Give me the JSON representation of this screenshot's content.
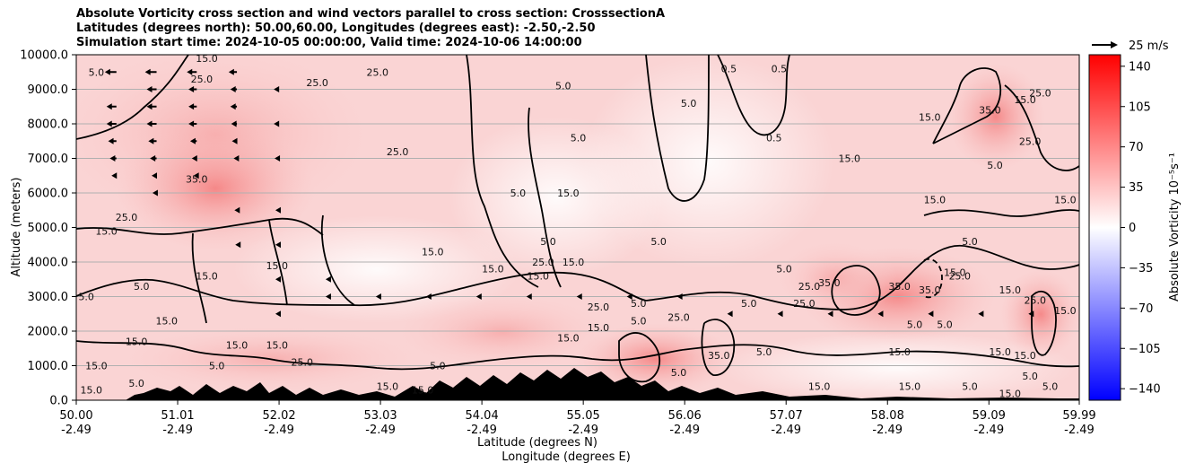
{
  "chart_data": {
    "type": "heatmap",
    "title_lines": [
      "Absolute Vorticity cross section and wind vectors parallel to cross section: CrosssectionA",
      "Latitudes (degrees north): 50.00,60.00, Longitudes (degrees east): -2.50,-2.50",
      "Simulation start time: 2024-10-05 00:00:00, Valid time: 2024-10-06 14:00:00"
    ],
    "x_ticks": [
      {
        "lat": "50.00",
        "lon": "-2.49",
        "value": 50.0
      },
      {
        "lat": "51.01",
        "lon": "-2.49",
        "value": 51.01
      },
      {
        "lat": "52.02",
        "lon": "-2.49",
        "value": 52.02
      },
      {
        "lat": "53.03",
        "lon": "-2.49",
        "value": 53.03
      },
      {
        "lat": "54.04",
        "lon": "-2.49",
        "value": 54.04
      },
      {
        "lat": "55.05",
        "lon": "-2.49",
        "value": 55.05
      },
      {
        "lat": "56.06",
        "lon": "-2.49",
        "value": 56.06
      },
      {
        "lat": "57.07",
        "lon": "-2.49",
        "value": 57.07
      },
      {
        "lat": "58.08",
        "lon": "-2.49",
        "value": 58.08
      },
      {
        "lat": "59.09",
        "lon": "-2.49",
        "value": 59.09
      },
      {
        "lat": "59.99",
        "lon": "-2.49",
        "value": 59.99
      }
    ],
    "xlim": [
      50.0,
      59.99
    ],
    "y_ticks": [
      "0.0",
      "1000.0",
      "2000.0",
      "3000.0",
      "4000.0",
      "5000.0",
      "6000.0",
      "7000.0",
      "8000.0",
      "9000.0",
      "10000.0"
    ],
    "ylim": [
      0,
      10000
    ],
    "xlabel_lat": "Latitude (degrees N)",
    "xlabel_lon": "Longitude (degrees E)",
    "ylabel": "Altitude (meters)",
    "grid": "horizontal",
    "colorbar": {
      "label": "Absolute Vorticity 10⁻⁵s⁻¹",
      "ticks": [
        "140",
        "105",
        "70",
        "35",
        "0",
        "−35",
        "−70",
        "−105",
        "−140"
      ],
      "range": [
        -150,
        150
      ],
      "colors": {
        "low": "#0000ff",
        "mid": "#ffffff",
        "high": "#ff0000"
      }
    },
    "quiver_key": {
      "label": "25 m/s",
      "speed": 25
    },
    "contour_levels": [
      "5.0",
      "15.0",
      "25.0",
      "35.0"
    ],
    "wind_vectors": [
      {
        "lat": 50.0,
        "alt": 9500,
        "u": -12
      },
      {
        "lat": 50.0,
        "alt": 8500,
        "u": -10
      },
      {
        "lat": 50.0,
        "alt": 8000,
        "u": -10
      },
      {
        "lat": 50.0,
        "alt": 7000,
        "u": -8
      },
      {
        "lat": 50.4,
        "alt": 9500,
        "u": -14
      },
      {
        "lat": 50.4,
        "alt": 8500,
        "u": -12
      },
      {
        "lat": 50.4,
        "alt": 8000,
        "u": -12
      },
      {
        "lat": 50.4,
        "alt": 7500,
        "u": -10
      },
      {
        "lat": 50.4,
        "alt": 7000,
        "u": -8
      },
      {
        "lat": 50.4,
        "alt": 6500,
        "u": -6
      },
      {
        "lat": 50.8,
        "alt": 9500,
        "u": -14
      },
      {
        "lat": 50.8,
        "alt": 9000,
        "u": -12
      },
      {
        "lat": 50.8,
        "alt": 8500,
        "u": -12
      },
      {
        "lat": 50.8,
        "alt": 8000,
        "u": -12
      },
      {
        "lat": 50.8,
        "alt": 7500,
        "u": -10
      },
      {
        "lat": 50.8,
        "alt": 7000,
        "u": -8
      },
      {
        "lat": 50.8,
        "alt": 6500,
        "u": -6
      },
      {
        "lat": 50.8,
        "alt": 6000,
        "u": -5
      },
      {
        "lat": 51.2,
        "alt": 9500,
        "u": -12
      },
      {
        "lat": 51.2,
        "alt": 9000,
        "u": -10
      },
      {
        "lat": 51.2,
        "alt": 8500,
        "u": -10
      },
      {
        "lat": 51.2,
        "alt": 8000,
        "u": -10
      },
      {
        "lat": 51.2,
        "alt": 7500,
        "u": -8
      },
      {
        "lat": 51.2,
        "alt": 7000,
        "u": -6
      },
      {
        "lat": 51.2,
        "alt": 6500,
        "u": -4
      },
      {
        "lat": 51.6,
        "alt": 9500,
        "u": -10
      },
      {
        "lat": 51.6,
        "alt": 9000,
        "u": -8
      },
      {
        "lat": 51.6,
        "alt": 8500,
        "u": -8
      },
      {
        "lat": 51.6,
        "alt": 8000,
        "u": -7
      },
      {
        "lat": 51.6,
        "alt": 7500,
        "u": -6
      },
      {
        "lat": 51.6,
        "alt": 7000,
        "u": -4
      },
      {
        "lat": 51.6,
        "alt": 5500,
        "u": -3
      },
      {
        "lat": 51.6,
        "alt": 4500,
        "u": -2
      },
      {
        "lat": 52.0,
        "alt": 9000,
        "u": -4
      },
      {
        "lat": 52.0,
        "alt": 8000,
        "u": -4
      },
      {
        "lat": 52.0,
        "alt": 7000,
        "u": -3
      },
      {
        "lat": 52.0,
        "alt": 5500,
        "u": -2
      },
      {
        "lat": 52.0,
        "alt": 4500,
        "u": -2
      },
      {
        "lat": 52.0,
        "alt": 3500,
        "u": -2
      },
      {
        "lat": 52.0,
        "alt": 2500,
        "u": -2
      },
      {
        "lat": 52.5,
        "alt": 3500,
        "u": -2
      },
      {
        "lat": 52.5,
        "alt": 3000,
        "u": -2
      },
      {
        "lat": 53.0,
        "alt": 3000,
        "u": -2
      },
      {
        "lat": 53.5,
        "alt": 3000,
        "u": -2
      },
      {
        "lat": 54.0,
        "alt": 3000,
        "u": -2
      },
      {
        "lat": 54.5,
        "alt": 3000,
        "u": -2
      },
      {
        "lat": 55.0,
        "alt": 3000,
        "u": -2
      },
      {
        "lat": 55.5,
        "alt": 3000,
        "u": -2
      },
      {
        "lat": 56.0,
        "alt": 3000,
        "u": -2
      },
      {
        "lat": 56.5,
        "alt": 2500,
        "u": -2
      },
      {
        "lat": 57.0,
        "alt": 2500,
        "u": -2
      },
      {
        "lat": 57.5,
        "alt": 2500,
        "u": -2
      },
      {
        "lat": 58.0,
        "alt": 2500,
        "u": -2
      },
      {
        "lat": 58.5,
        "alt": 2500,
        "u": -2
      },
      {
        "lat": 59.0,
        "alt": 2500,
        "u": -2
      },
      {
        "lat": 59.5,
        "alt": 2500,
        "u": -2
      }
    ],
    "contour_labels": [
      {
        "text": "15.0",
        "lat": 51.3,
        "alt": 9900
      },
      {
        "text": "5.0",
        "lat": 50.2,
        "alt": 9500
      },
      {
        "text": "25.0",
        "lat": 51.25,
        "alt": 9300
      },
      {
        "text": "25.0",
        "lat": 52.4,
        "alt": 9200
      },
      {
        "text": "25.0",
        "lat": 53.0,
        "alt": 9500
      },
      {
        "text": "5.0",
        "lat": 54.85,
        "alt": 9100
      },
      {
        "text": "0.5",
        "lat": 56.5,
        "alt": 9600
      },
      {
        "text": "0.5",
        "lat": 57.0,
        "alt": 9600
      },
      {
        "text": "5.0",
        "lat": 56.1,
        "alt": 8600
      },
      {
        "text": "35.0",
        "lat": 59.1,
        "alt": 8400
      },
      {
        "text": "15.0",
        "lat": 58.5,
        "alt": 8200
      },
      {
        "text": "25.0",
        "lat": 59.6,
        "alt": 8900
      },
      {
        "text": "15.0",
        "lat": 59.45,
        "alt": 8700
      },
      {
        "text": "5.0",
        "lat": 55.0,
        "alt": 7600
      },
      {
        "text": "0.5",
        "lat": 56.95,
        "alt": 7600
      },
      {
        "text": "25.0",
        "lat": 53.2,
        "alt": 7200
      },
      {
        "text": "25.0",
        "lat": 59.5,
        "alt": 7500
      },
      {
        "text": "15.0",
        "lat": 57.7,
        "alt": 7000
      },
      {
        "text": "5.0",
        "lat": 59.15,
        "alt": 6800
      },
      {
        "text": "35.0",
        "lat": 51.2,
        "alt": 6400
      },
      {
        "text": "5.0",
        "lat": 54.4,
        "alt": 6000
      },
      {
        "text": "15.0",
        "lat": 54.9,
        "alt": 6000
      },
      {
        "text": "15.0",
        "lat": 58.55,
        "alt": 5800
      },
      {
        "text": "15.0",
        "lat": 59.85,
        "alt": 5800
      },
      {
        "text": "25.0",
        "lat": 50.5,
        "alt": 5300
      },
      {
        "text": "15.0",
        "lat": 50.3,
        "alt": 4900
      },
      {
        "text": "5.0",
        "lat": 55.8,
        "alt": 4600
      },
      {
        "text": "5.0",
        "lat": 54.7,
        "alt": 4600
      },
      {
        "text": "15.0",
        "lat": 53.55,
        "alt": 4300
      },
      {
        "text": "25.0",
        "lat": 54.65,
        "alt": 4000
      },
      {
        "text": "5.0",
        "lat": 58.9,
        "alt": 4600
      },
      {
        "text": "15.0",
        "lat": 54.95,
        "alt": 4000
      },
      {
        "text": "15.0",
        "lat": 54.15,
        "alt": 3800
      },
      {
        "text": "15.0",
        "lat": 52.0,
        "alt": 3900
      },
      {
        "text": "15.0",
        "lat": 54.6,
        "alt": 3600
      },
      {
        "text": "5.0",
        "lat": 57.05,
        "alt": 3800
      },
      {
        "text": "15.0",
        "lat": 58.75,
        "alt": 3700
      },
      {
        "text": "25.0",
        "lat": 58.8,
        "alt": 3600
      },
      {
        "text": "15.0",
        "lat": 51.3,
        "alt": 3600
      },
      {
        "text": "5.0",
        "lat": 50.65,
        "alt": 3300
      },
      {
        "text": "5.0",
        "lat": 50.1,
        "alt": 3000
      },
      {
        "text": "35.0",
        "lat": 58.2,
        "alt": 3300
      },
      {
        "text": "35.0",
        "lat": 57.5,
        "alt": 3400
      },
      {
        "text": "35.0",
        "lat": 58.5,
        "alt": 3200
      },
      {
        "text": "25.0",
        "lat": 57.3,
        "alt": 3300
      },
      {
        "text": "15.0",
        "lat": 59.3,
        "alt": 3200
      },
      {
        "text": "25.0",
        "lat": 59.55,
        "alt": 2900
      },
      {
        "text": "15.0",
        "lat": 59.85,
        "alt": 2600
      },
      {
        "text": "5.0",
        "lat": 55.6,
        "alt": 2800
      },
      {
        "text": "25.0",
        "lat": 55.2,
        "alt": 2700
      },
      {
        "text": "5.0",
        "lat": 56.7,
        "alt": 2800
      },
      {
        "text": "25.0",
        "lat": 57.25,
        "alt": 2800
      },
      {
        "text": "15.0",
        "lat": 54.9,
        "alt": 1800
      },
      {
        "text": "15.0",
        "lat": 55.2,
        "alt": 2100
      },
      {
        "text": "5.0",
        "lat": 55.6,
        "alt": 2300
      },
      {
        "text": "25.0",
        "lat": 56.0,
        "alt": 2400
      },
      {
        "text": "35.0",
        "lat": 56.4,
        "alt": 1300
      },
      {
        "text": "5.0",
        "lat": 56.85,
        "alt": 1400
      },
      {
        "text": "15.0",
        "lat": 50.9,
        "alt": 2300
      },
      {
        "text": "15.0",
        "lat": 50.6,
        "alt": 1700
      },
      {
        "text": "15.0",
        "lat": 51.6,
        "alt": 1600
      },
      {
        "text": "15.0",
        "lat": 52.0,
        "alt": 1600
      },
      {
        "text": "5.0",
        "lat": 58.35,
        "alt": 2200
      },
      {
        "text": "5.0",
        "lat": 58.65,
        "alt": 2200
      },
      {
        "text": "15.0",
        "lat": 58.2,
        "alt": 1400
      },
      {
        "text": "15.0",
        "lat": 59.2,
        "alt": 1400
      },
      {
        "text": "15.0",
        "lat": 59.45,
        "alt": 1300
      },
      {
        "text": "15.0",
        "lat": 50.2,
        "alt": 1000
      },
      {
        "text": "5.0",
        "lat": 51.4,
        "alt": 1000
      },
      {
        "text": "25.0",
        "lat": 52.25,
        "alt": 1100
      },
      {
        "text": "5.0",
        "lat": 53.6,
        "alt": 1000
      },
      {
        "text": "5.0",
        "lat": 50.6,
        "alt": 500
      },
      {
        "text": "15.0",
        "lat": 50.15,
        "alt": 300
      },
      {
        "text": "15.0",
        "lat": 53.1,
        "alt": 400
      },
      {
        "text": "15.0",
        "lat": 53.45,
        "alt": 300
      },
      {
        "text": "5.0",
        "lat": 56.0,
        "alt": 800
      },
      {
        "text": "15.0",
        "lat": 57.4,
        "alt": 400
      },
      {
        "text": "15.0",
        "lat": 58.3,
        "alt": 400
      },
      {
        "text": "5.0",
        "lat": 58.9,
        "alt": 400
      },
      {
        "text": "15.0",
        "lat": 59.3,
        "alt": 200
      },
      {
        "text": "5.0",
        "lat": 59.5,
        "alt": 700
      },
      {
        "text": "5.0",
        "lat": 59.7,
        "alt": 400
      }
    ]
  }
}
